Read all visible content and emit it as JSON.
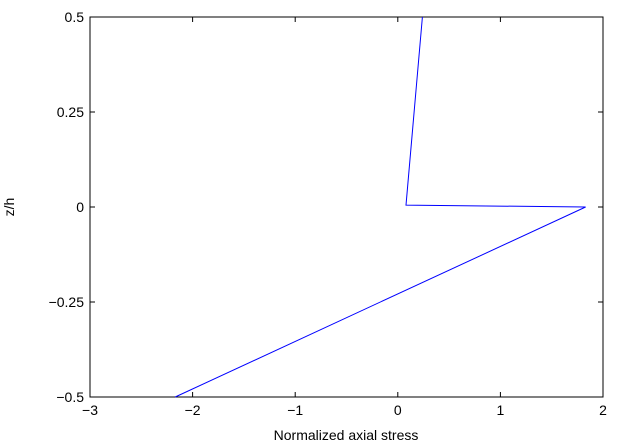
{
  "chart_data": {
    "type": "line",
    "title": "",
    "xlabel": "Normalized axial stress",
    "ylabel": "z/h",
    "xlim": [
      -3,
      2
    ],
    "ylim": [
      -0.5,
      0.5
    ],
    "xticks": [
      -3,
      -2,
      -1,
      0,
      1,
      2
    ],
    "xtick_labels": [
      "−3",
      "−2",
      "−1",
      "0",
      "1",
      "2"
    ],
    "yticks": [
      -0.5,
      -0.25,
      0,
      0.25,
      0.5
    ],
    "ytick_labels": [
      "−0.5",
      "−0.25",
      "0",
      "0.25",
      "0.5"
    ],
    "grid": false,
    "series": [
      {
        "color": "#0000ff",
        "x": [
          -2.17,
          1.83,
          0.08,
          0.24
        ],
        "y": [
          -0.5,
          0.0,
          0.005,
          0.5
        ]
      }
    ]
  }
}
